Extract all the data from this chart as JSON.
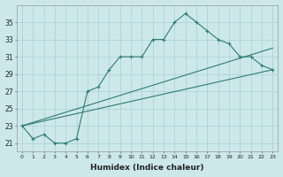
{
  "xlabel": "Humidex (Indice chaleur)",
  "ylabel": "",
  "background_color": "#cce8eb",
  "grid_color": "#aacfd4",
  "line_color": "#2e7d72",
  "xlim": [
    -0.5,
    23.5
  ],
  "ylim": [
    20.0,
    37.0
  ],
  "xticks": [
    0,
    1,
    2,
    3,
    4,
    5,
    6,
    7,
    8,
    9,
    10,
    11,
    12,
    13,
    14,
    15,
    16,
    17,
    18,
    19,
    20,
    21,
    22,
    23
  ],
  "yticks": [
    21,
    23,
    25,
    27,
    29,
    31,
    33,
    35
  ],
  "line1_x": [
    0,
    1,
    2,
    3,
    4,
    5,
    6,
    7,
    8,
    9,
    10,
    11,
    12,
    13,
    14,
    15,
    16,
    17,
    18,
    19,
    20,
    21,
    22,
    23
  ],
  "line1_y": [
    23.0,
    21.5,
    22.0,
    21.0,
    21.0,
    21.5,
    27.0,
    27.5,
    29.5,
    31.0,
    31.0,
    31.0,
    33.0,
    33.0,
    35.0,
    36.0,
    35.0,
    34.0,
    33.0,
    32.5,
    31.0,
    31.0,
    30.0,
    29.5
  ],
  "line2_x": [
    0,
    23
  ],
  "line2_y": [
    23.0,
    29.5
  ],
  "line3_x": [
    0,
    23
  ],
  "line3_y": [
    23.0,
    32.0
  ],
  "figsize": [
    3.2,
    2.0
  ],
  "dpi": 100
}
